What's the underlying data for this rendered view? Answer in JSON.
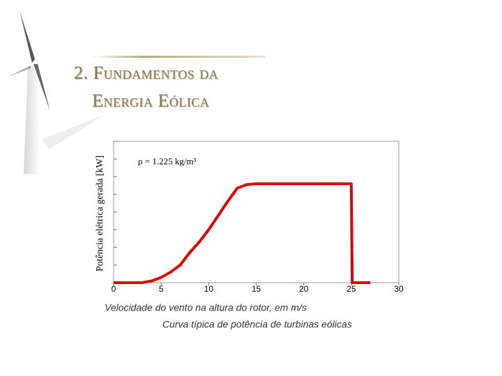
{
  "slide": {
    "title_lines": [
      "2. Fundamentos da",
      "Energia Eólica"
    ]
  },
  "chart_data": {
    "type": "line",
    "ylabel": "Potência elétrica gerada  [kW]",
    "xlabel": "Velocidade do vento na altura do rotor, em m/s",
    "annotation": "ρ = 1.225 kg/m³",
    "caption": "Curva típica de potência de turbinas eólicas",
    "x": [
      0,
      3,
      4,
      5,
      6,
      7,
      8,
      9,
      10,
      11,
      12,
      13,
      14,
      15,
      25,
      25.1,
      27
    ],
    "series": [
      {
        "color": "#e00000",
        "values": [
          0,
          0,
          0.1,
          0.3,
          0.6,
          1.0,
          1.7,
          2.3,
          3.0,
          3.8,
          4.6,
          5.35,
          5.55,
          5.6,
          5.6,
          0,
          0
        ]
      }
    ],
    "xlim": [
      0,
      30
    ],
    "xticks": [
      0,
      5,
      10,
      15,
      20,
      25,
      30
    ],
    "ylim": [
      0,
      8
    ],
    "ytick_marks": [
      0,
      1,
      2,
      3,
      4,
      5,
      6,
      7,
      8
    ]
  }
}
